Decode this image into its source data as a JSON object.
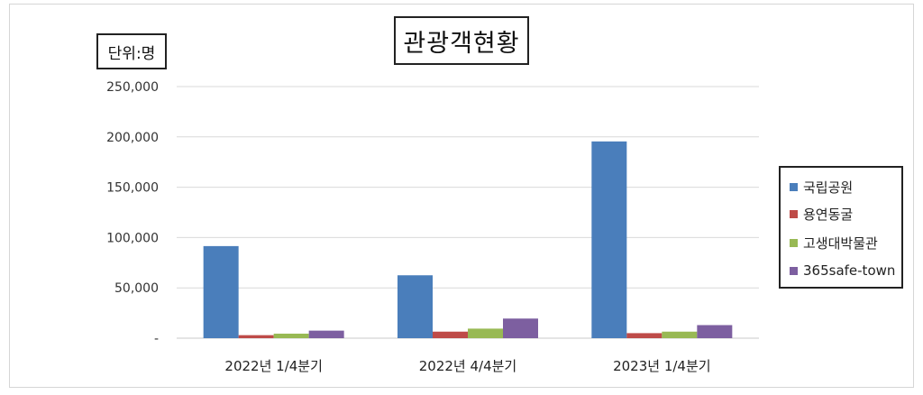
{
  "chart_data": {
    "type": "bar",
    "title": "관광객현황",
    "unit_label": "단위:명",
    "categories": [
      "2022년 1/4분기",
      "2022년 4/4분기",
      "2023년 1/4분기"
    ],
    "series": [
      {
        "name": "국립공원",
        "color": "#4a7ebb",
        "values": [
          91500,
          62500,
          195500
        ]
      },
      {
        "name": "용연동굴",
        "color": "#be4b48",
        "values": [
          3000,
          6500,
          5000
        ]
      },
      {
        "name": "고생대박물관",
        "color": "#98b954",
        "values": [
          4500,
          9500,
          6500
        ]
      },
      {
        "name": "365safe-town",
        "color": "#7d5fa0",
        "values": [
          7500,
          19500,
          13000
        ]
      }
    ],
    "yticks": [
      "-",
      "50,000",
      "100,000",
      "150,000",
      "200,000",
      "250,000"
    ],
    "ylim": [
      0,
      250000
    ],
    "grid": true,
    "legend_position": "right"
  }
}
